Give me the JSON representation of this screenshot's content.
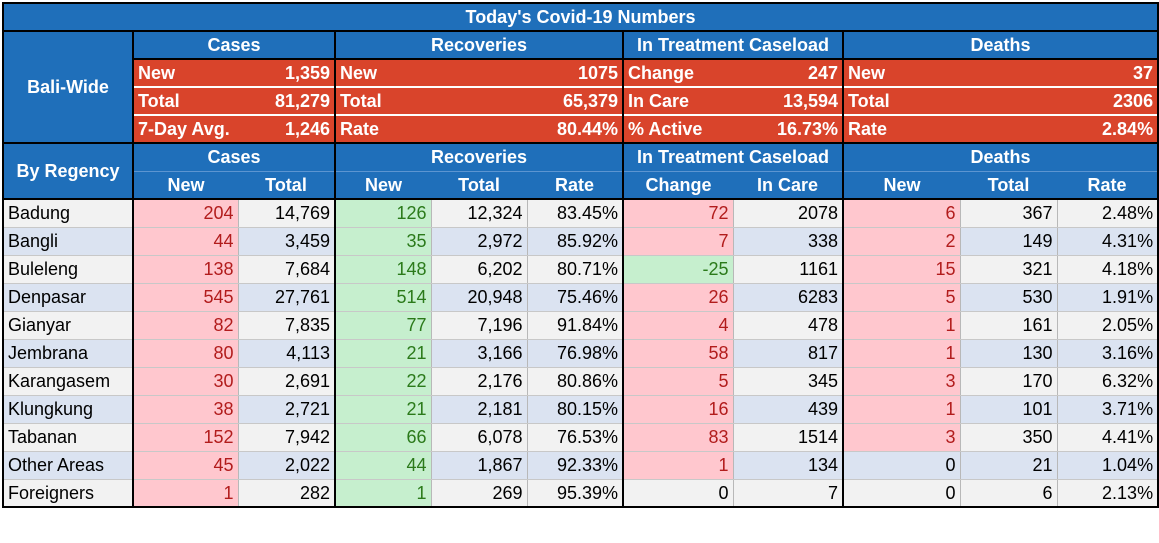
{
  "title": "Today's Covid-19 Numbers",
  "group_headers": [
    "Cases",
    "Recoveries",
    "In Treatment Caseload",
    "Deaths"
  ],
  "bali_wide": {
    "label": "Bali-Wide",
    "rows": [
      {
        "c_label": "New",
        "c_val": "1,359",
        "r_label": "New",
        "r_val": "1075",
        "t_label": "Change",
        "t_val": "247",
        "d_label": "New",
        "d_val": "37"
      },
      {
        "c_label": "Total",
        "c_val": "81,279",
        "r_label": "Total",
        "r_val": "65,379",
        "t_label": "In Care",
        "t_val": "13,594",
        "d_label": "Total",
        "d_val": "2306"
      },
      {
        "c_label": "7-Day Avg.",
        "c_val": "1,246",
        "r_label": "Rate",
        "r_val": "80.44%",
        "t_label": "% Active",
        "t_val": "16.73%",
        "d_label": "Rate",
        "d_val": "2.84%"
      }
    ]
  },
  "by_regency": {
    "label": "By Regency",
    "columns": [
      "New",
      "Total",
      "New",
      "Total",
      "Rate",
      "Change",
      "In Care",
      "New",
      "Total",
      "Rate"
    ],
    "rows": [
      {
        "name": "Badung",
        "cases_new": "204",
        "cases_total": "14,769",
        "rec_new": "126",
        "rec_total": "12,324",
        "rec_rate": "83.45%",
        "tr_change": "72",
        "tr_incare": "2078",
        "d_new": "6",
        "d_total": "367",
        "d_rate": "2.48%"
      },
      {
        "name": "Bangli",
        "cases_new": "44",
        "cases_total": "3,459",
        "rec_new": "35",
        "rec_total": "2,972",
        "rec_rate": "85.92%",
        "tr_change": "7",
        "tr_incare": "338",
        "d_new": "2",
        "d_total": "149",
        "d_rate": "4.31%"
      },
      {
        "name": "Buleleng",
        "cases_new": "138",
        "cases_total": "7,684",
        "rec_new": "148",
        "rec_total": "6,202",
        "rec_rate": "80.71%",
        "tr_change": "-25",
        "tr_incare": "1161",
        "d_new": "15",
        "d_total": "321",
        "d_rate": "4.18%"
      },
      {
        "name": "Denpasar",
        "cases_new": "545",
        "cases_total": "27,761",
        "rec_new": "514",
        "rec_total": "20,948",
        "rec_rate": "75.46%",
        "tr_change": "26",
        "tr_incare": "6283",
        "d_new": "5",
        "d_total": "530",
        "d_rate": "1.91%"
      },
      {
        "name": "Gianyar",
        "cases_new": "82",
        "cases_total": "7,835",
        "rec_new": "77",
        "rec_total": "7,196",
        "rec_rate": "91.84%",
        "tr_change": "4",
        "tr_incare": "478",
        "d_new": "1",
        "d_total": "161",
        "d_rate": "2.05%"
      },
      {
        "name": "Jembrana",
        "cases_new": "80",
        "cases_total": "4,113",
        "rec_new": "21",
        "rec_total": "3,166",
        "rec_rate": "76.98%",
        "tr_change": "58",
        "tr_incare": "817",
        "d_new": "1",
        "d_total": "130",
        "d_rate": "3.16%"
      },
      {
        "name": "Karangasem",
        "cases_new": "30",
        "cases_total": "2,691",
        "rec_new": "22",
        "rec_total": "2,176",
        "rec_rate": "80.86%",
        "tr_change": "5",
        "tr_incare": "345",
        "d_new": "3",
        "d_total": "170",
        "d_rate": "6.32%"
      },
      {
        "name": "Klungkung",
        "cases_new": "38",
        "cases_total": "2,721",
        "rec_new": "21",
        "rec_total": "2,181",
        "rec_rate": "80.15%",
        "tr_change": "16",
        "tr_incare": "439",
        "d_new": "1",
        "d_total": "101",
        "d_rate": "3.71%"
      },
      {
        "name": "Tabanan",
        "cases_new": "152",
        "cases_total": "7,942",
        "rec_new": "66",
        "rec_total": "6,078",
        "rec_rate": "76.53%",
        "tr_change": "83",
        "tr_incare": "1514",
        "d_new": "3",
        "d_total": "350",
        "d_rate": "4.41%"
      },
      {
        "name": "Other Areas",
        "cases_new": "45",
        "cases_total": "2,022",
        "rec_new": "44",
        "rec_total": "1,867",
        "rec_rate": "92.33%",
        "tr_change": "1",
        "tr_incare": "134",
        "d_new": "0",
        "d_total": "21",
        "d_rate": "1.04%"
      },
      {
        "name": "Foreigners",
        "cases_new": "1",
        "cases_total": "282",
        "rec_new": "1",
        "rec_total": "269",
        "rec_rate": "95.39%",
        "tr_change": "0",
        "tr_incare": "7",
        "d_new": "0",
        "d_total": "6",
        "d_rate": "2.13%"
      }
    ]
  },
  "colors": {
    "header_blue": "#1f6fba",
    "summary_red": "#d9442b",
    "positive_fill": "#ffc7ce",
    "positive_text": "#b21c1c",
    "green_fill": "#c6efce",
    "green_text": "#2b7a1a",
    "alt_row": "#dbe3f1",
    "plain_row": "#f2f2f2"
  }
}
